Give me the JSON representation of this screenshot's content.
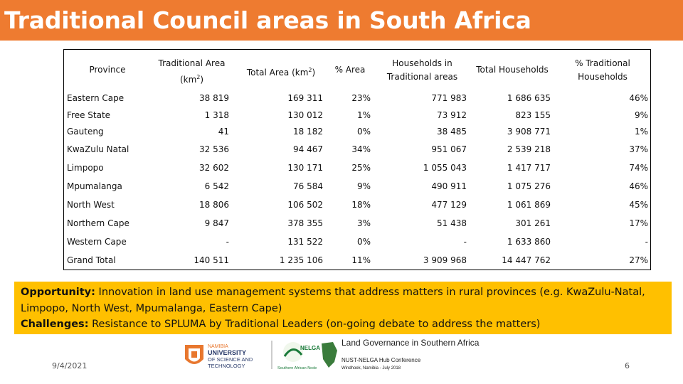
{
  "title": "Traditional Council areas in South Africa",
  "table": {
    "headers": {
      "province": "Province",
      "trad_area_line1": "Traditional Area",
      "trad_area_line2": "(km",
      "trad_area_sup": "2",
      "trad_area_close": ")",
      "total_area": "Total Area (km",
      "total_area_sup": "2",
      "total_area_close": ")",
      "pct_area": "% Area",
      "hh_trad_line1": "Households in",
      "hh_trad_line2": "Traditional areas",
      "total_hh": "Total Households",
      "pct_trad_line1": "% Traditional",
      "pct_trad_line2": "Households"
    },
    "rows": [
      {
        "province": "Eastern Cape",
        "trad_area": "38 819",
        "total_area": "169 311",
        "pct_area": "23%",
        "hh_trad": "771 983",
        "total_hh": "1 686 635",
        "pct_hh": "46%"
      },
      {
        "province": "Free State",
        "trad_area": "1 318",
        "total_area": "130 012",
        "pct_area": "1%",
        "hh_trad": "73 912",
        "total_hh": "823 155",
        "pct_hh": "9%"
      },
      {
        "province": "Gauteng",
        "trad_area": "41",
        "total_area": "18 182",
        "pct_area": "0%",
        "hh_trad": "38 485",
        "total_hh": "3 908 771",
        "pct_hh": "1%"
      },
      {
        "province": "KwaZulu Natal",
        "trad_area": "32 536",
        "total_area": "94 467",
        "pct_area": "34%",
        "hh_trad": "951 067",
        "total_hh": "2 539 218",
        "pct_hh": "37%"
      },
      {
        "province": "Limpopo",
        "trad_area": "32 602",
        "total_area": "130 171",
        "pct_area": "25%",
        "hh_trad": "1 055 043",
        "total_hh": "1 417 717",
        "pct_hh": "74%"
      },
      {
        "province": "Mpumalanga",
        "trad_area": "6 542",
        "total_area": "76 584",
        "pct_area": "9%",
        "hh_trad": "490 911",
        "total_hh": "1 075 276",
        "pct_hh": "46%"
      },
      {
        "province": "North West",
        "trad_area": "18 806",
        "total_area": "106 502",
        "pct_area": "18%",
        "hh_trad": "477 129",
        "total_hh": "1 061 869",
        "pct_hh": "45%"
      },
      {
        "province": "Northern Cape",
        "trad_area": "9 847",
        "total_area": "378 355",
        "pct_area": "3%",
        "hh_trad": "51 438",
        "total_hh": "301 261",
        "pct_hh": "17%"
      },
      {
        "province": "Western Cape",
        "trad_area": "-",
        "total_area": "131 522",
        "pct_area": "0%",
        "hh_trad": "-",
        "total_hh": "1 633 860",
        "pct_hh": "-"
      },
      {
        "province": "Grand Total",
        "trad_area": "140 511",
        "total_area": "1 235 106",
        "pct_area": "11%",
        "hh_trad": "3 909 968",
        "total_hh": "14 447 762",
        "pct_hh": "27%"
      }
    ]
  },
  "callout": {
    "opportunity_label": "Opportunity:",
    "opportunity_text_1": " Innovation in land use management systems that address matters in rural provinces (e.g. KwaZulu-Natal,",
    "opportunity_text_2": "Limpopo, North West, Mpumalanga, Eastern Cape)",
    "challenges_label": "Challenges:",
    "challenges_text": " Resistance to SPLUMA by Traditional Leaders (on-going debate to address the matters)"
  },
  "footer": {
    "date": "9/4/2021",
    "page": "6",
    "logo_nust_line1": "NAMIBIA",
    "logo_nust_line2": "UNIVERSITY",
    "logo_nust_line3": "OF SCIENCE AND",
    "logo_nust_line4": "TECHNOLOGY",
    "logo_nelga": "NELGA",
    "logo_nelga_sub": "Southern African Node",
    "conf_title": "Land Governance in Southern Africa",
    "conf_sub": "NUST-NELGA Hub Conference",
    "conf_place": "Windhoek, Namibia - July 2018"
  },
  "colors": {
    "title_bar": "#ee7b30",
    "callout": "#ffc000",
    "nust_orange": "#e8772e",
    "nelga_green": "#1a7a3a"
  }
}
